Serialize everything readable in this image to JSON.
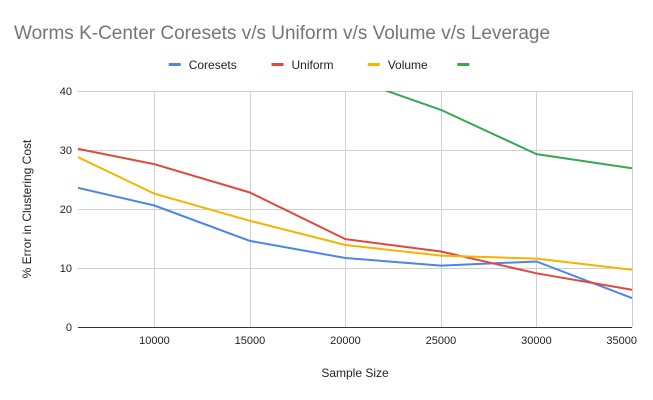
{
  "chart_data": {
    "type": "line",
    "title": "Worms K-Center    Coresets v/s Uniform v/s Volume v/s Leverage",
    "xlabel": "Sample Size",
    "ylabel": "% Error in Clustering Cost",
    "xlim": [
      6000,
      35000
    ],
    "ylim": [
      0,
      40
    ],
    "xticks": [
      10000,
      15000,
      20000,
      25000,
      30000,
      35000
    ],
    "yticks": [
      0,
      10,
      20,
      30,
      40
    ],
    "x_tick_labels": [
      "10000",
      "15000",
      "20000",
      "25000",
      "30000",
      "35000"
    ],
    "y_tick_labels": [
      "0",
      "10",
      "20",
      "30",
      "40"
    ],
    "grid": true,
    "legend_position": "top",
    "series": [
      {
        "name": "Coresets",
        "color": "#4a86e8",
        "points": [
          [
            6000,
            23.6
          ],
          [
            10000,
            20.6
          ],
          [
            15000,
            14.6
          ],
          [
            20000,
            11.7
          ],
          [
            25000,
            10.4
          ],
          [
            30000,
            11.1
          ],
          [
            35000,
            4.9
          ]
        ]
      },
      {
        "name": "Uniform",
        "color": "#e0483e",
        "points": [
          [
            6000,
            30.2
          ],
          [
            10000,
            27.6
          ],
          [
            15000,
            22.8
          ],
          [
            20000,
            14.9
          ],
          [
            25000,
            12.8
          ],
          [
            30000,
            9.1
          ],
          [
            35000,
            6.3
          ]
        ]
      },
      {
        "name": "Volume",
        "color": "#f5b400",
        "points": [
          [
            6000,
            28.8
          ],
          [
            10000,
            22.6
          ],
          [
            15000,
            18.0
          ],
          [
            20000,
            13.9
          ],
          [
            25000,
            12.1
          ],
          [
            30000,
            11.6
          ],
          [
            35000,
            9.7
          ]
        ]
      },
      {
        "name": "",
        "color": "#34a853",
        "points": [
          [
            20000,
            42.5
          ],
          [
            25000,
            36.8
          ],
          [
            30000,
            29.3
          ],
          [
            35000,
            26.9
          ]
        ]
      }
    ]
  }
}
